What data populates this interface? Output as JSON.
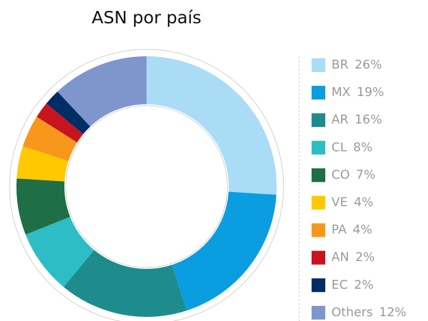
{
  "chart_data": {
    "type": "donut",
    "title": "ASN por país",
    "categories": [
      "BR",
      "MX",
      "AR",
      "CL",
      "CO",
      "VE",
      "PA",
      "AN",
      "EC",
      "Others"
    ],
    "values": [
      26,
      19,
      16,
      8,
      7,
      4,
      4,
      2,
      2,
      12
    ],
    "value_labels": [
      "26%",
      "19%",
      "16%",
      "8%",
      "7%",
      "4%",
      "4%",
      "2%",
      "2%",
      "12%"
    ],
    "colors": [
      "#aadcf5",
      "#0a9ee0",
      "#1e8c8c",
      "#2dbdc4",
      "#1e6e46",
      "#ffc800",
      "#f7981d",
      "#c8141e",
      "#002d64",
      "#7f96cd"
    ],
    "legend": "right"
  }
}
